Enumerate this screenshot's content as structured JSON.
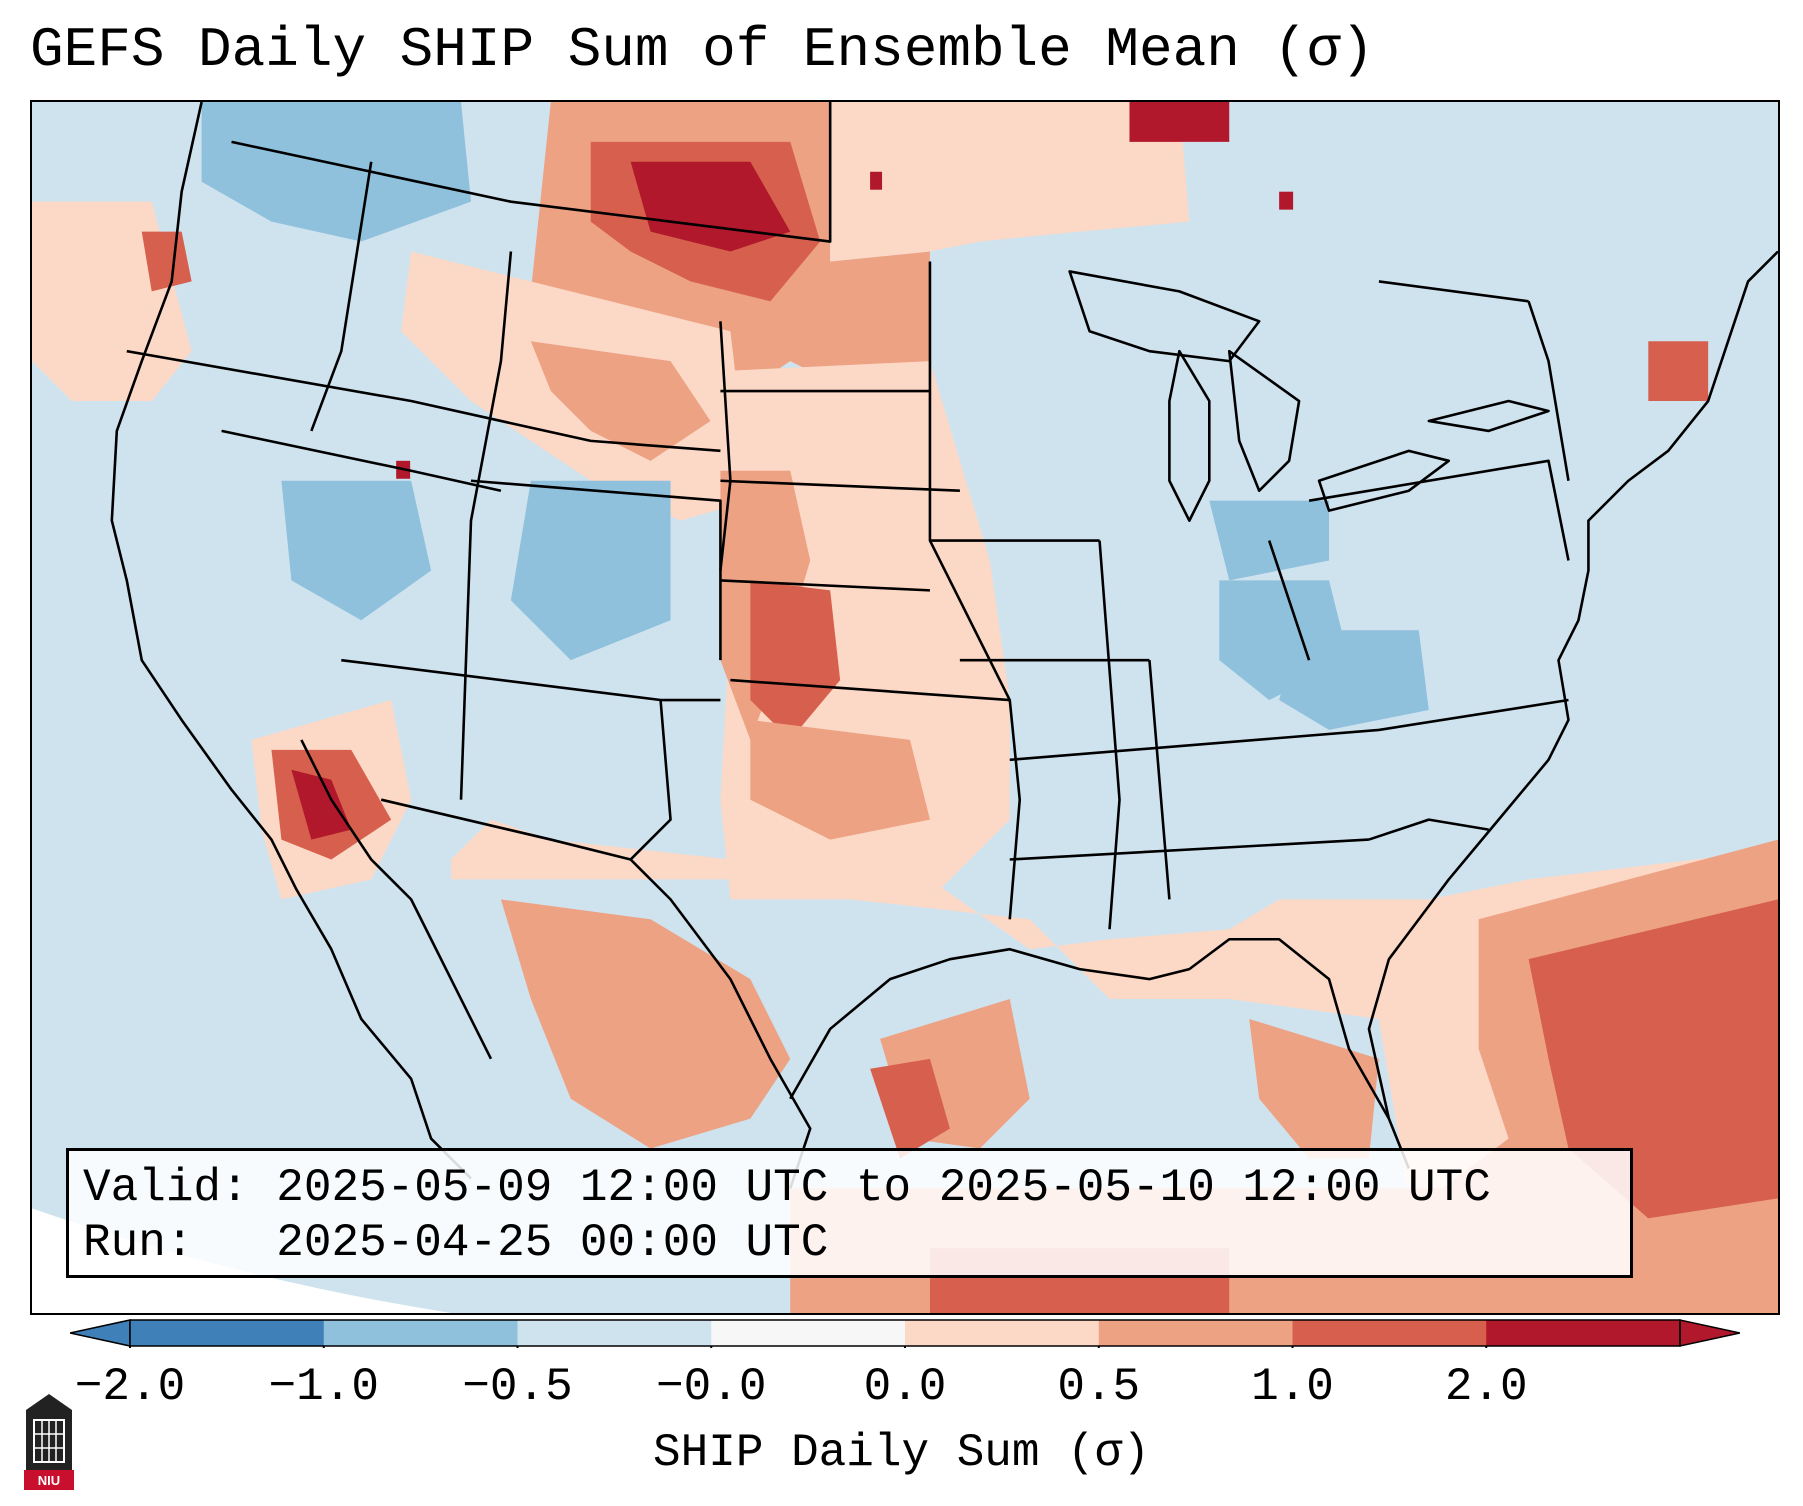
{
  "title": "GEFS Daily SHIP Sum of Ensemble Mean (σ)",
  "info": {
    "valid_label": "Valid:",
    "valid_value": "2025-05-09 12:00 UTC to 2025-05-10 12:00 UTC",
    "run_label": "Run:",
    "run_value": "2025-04-25 00:00 UTC"
  },
  "colorbar": {
    "label": "SHIP Daily Sum (σ)",
    "ticks": [
      "−2.0",
      "−1.0",
      "−0.5",
      "−0.0",
      "0.0",
      "0.5",
      "1.0",
      "2.0"
    ],
    "colors": [
      "#3f80b8",
      "#8fc0dc",
      "#cfe3ef",
      "#f7f7f7",
      "#fcd8c6",
      "#eda283",
      "#d6604d",
      "#b2182b"
    ],
    "extend": "both"
  },
  "map": {
    "region": "Contiguous United States",
    "background_color": "#cfe3ef",
    "boundaries": "state and coastline outlines"
  },
  "logo": {
    "text": "NIU",
    "icon": "university-tower-logo"
  }
}
